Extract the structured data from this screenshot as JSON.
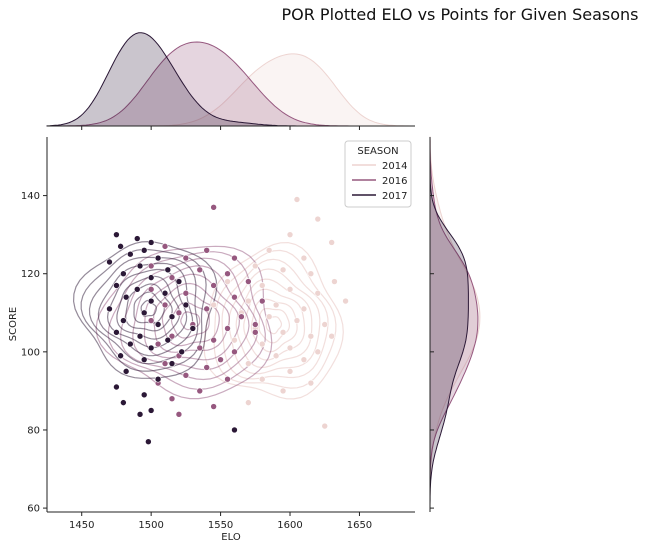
{
  "chart_data": {
    "type": "scatter",
    "title": "POR Plotted ELO vs Points for Given Seasons",
    "xlabel": "ELO",
    "ylabel": "SCORE",
    "xlim": [
      1425,
      1690
    ],
    "ylim": [
      59,
      155
    ],
    "xticks": [
      "1450",
      "1500",
      "1550",
      "1600",
      "1650"
    ],
    "yticks": [
      "60",
      "80",
      "100",
      "120",
      "140"
    ],
    "legend": {
      "title": "SEASON",
      "placement": "top-right"
    },
    "series": [
      {
        "name": "2014",
        "color": "#edd4d1",
        "center": [
          1588,
          107
        ],
        "spread": [
          28,
          11
        ],
        "points": [
          [
            1605,
            139
          ],
          [
            1620,
            134
          ],
          [
            1600,
            130
          ],
          [
            1630,
            128
          ],
          [
            1585,
            126
          ],
          [
            1610,
            124
          ],
          [
            1575,
            122
          ],
          [
            1595,
            121
          ],
          [
            1615,
            120
          ],
          [
            1632,
            118
          ],
          [
            1580,
            117
          ],
          [
            1600,
            116
          ],
          [
            1620,
            115
          ],
          [
            1570,
            113
          ],
          [
            1590,
            112
          ],
          [
            1610,
            111
          ],
          [
            1640,
            113
          ],
          [
            1565,
            110
          ],
          [
            1585,
            109
          ],
          [
            1605,
            108
          ],
          [
            1625,
            107
          ],
          [
            1575,
            106
          ],
          [
            1595,
            105
          ],
          [
            1615,
            104
          ],
          [
            1560,
            103
          ],
          [
            1580,
            102
          ],
          [
            1600,
            101
          ],
          [
            1620,
            100
          ],
          [
            1590,
            99
          ],
          [
            1610,
            98
          ],
          [
            1570,
            97
          ],
          [
            1600,
            95
          ],
          [
            1580,
            93
          ],
          [
            1615,
            92
          ],
          [
            1595,
            90
          ],
          [
            1570,
            87
          ],
          [
            1625,
            81
          ],
          [
            1555,
            118
          ],
          [
            1545,
            112
          ],
          [
            1630,
            104
          ]
        ]
      },
      {
        "name": "2016",
        "color": "#96587f",
        "center": [
          1528,
          108
        ],
        "spread": [
          35,
          11
        ],
        "points": [
          [
            1545,
            137
          ],
          [
            1510,
            127
          ],
          [
            1540,
            126
          ],
          [
            1525,
            124
          ],
          [
            1560,
            124
          ],
          [
            1500,
            122
          ],
          [
            1535,
            121
          ],
          [
            1555,
            120
          ],
          [
            1515,
            119
          ],
          [
            1570,
            118
          ],
          [
            1545,
            117
          ],
          [
            1500,
            116
          ],
          [
            1525,
            115
          ],
          [
            1560,
            114
          ],
          [
            1580,
            113
          ],
          [
            1510,
            112
          ],
          [
            1540,
            111
          ],
          [
            1520,
            110
          ],
          [
            1565,
            109
          ],
          [
            1500,
            108
          ],
          [
            1530,
            107
          ],
          [
            1555,
            106
          ],
          [
            1575,
            105
          ],
          [
            1515,
            104
          ],
          [
            1545,
            103
          ],
          [
            1505,
            102
          ],
          [
            1535,
            101
          ],
          [
            1560,
            100
          ],
          [
            1520,
            99
          ],
          [
            1550,
            98
          ],
          [
            1510,
            97
          ],
          [
            1540,
            96
          ],
          [
            1525,
            94
          ],
          [
            1555,
            93
          ],
          [
            1505,
            92
          ],
          [
            1535,
            90
          ],
          [
            1515,
            88
          ],
          [
            1545,
            86
          ],
          [
            1520,
            84
          ],
          [
            1575,
            107
          ]
        ]
      },
      {
        "name": "2017",
        "color": "#2b1836",
        "center": [
          1498,
          111
        ],
        "spread": [
          28,
          10
        ],
        "points": [
          [
            1475,
            130
          ],
          [
            1490,
            129
          ],
          [
            1500,
            128
          ],
          [
            1478,
            127
          ],
          [
            1495,
            126
          ],
          [
            1485,
            125
          ],
          [
            1505,
            124
          ],
          [
            1470,
            123
          ],
          [
            1492,
            122
          ],
          [
            1512,
            121
          ],
          [
            1480,
            120
          ],
          [
            1500,
            119
          ],
          [
            1520,
            118
          ],
          [
            1475,
            117
          ],
          [
            1490,
            116
          ],
          [
            1510,
            115
          ],
          [
            1482,
            114
          ],
          [
            1500,
            113
          ],
          [
            1525,
            112
          ],
          [
            1470,
            111
          ],
          [
            1495,
            110
          ],
          [
            1515,
            109
          ],
          [
            1480,
            108
          ],
          [
            1505,
            107
          ],
          [
            1530,
            106
          ],
          [
            1475,
            105
          ],
          [
            1492,
            104
          ],
          [
            1512,
            103
          ],
          [
            1485,
            102
          ],
          [
            1500,
            101
          ],
          [
            1522,
            100
          ],
          [
            1478,
            99
          ],
          [
            1495,
            98
          ],
          [
            1515,
            97
          ],
          [
            1482,
            95
          ],
          [
            1505,
            93
          ],
          [
            1475,
            91
          ],
          [
            1495,
            89
          ],
          [
            1480,
            87
          ],
          [
            1500,
            85
          ],
          [
            1492,
            84
          ],
          [
            1560,
            80
          ],
          [
            1498,
            77
          ]
        ]
      }
    ]
  }
}
